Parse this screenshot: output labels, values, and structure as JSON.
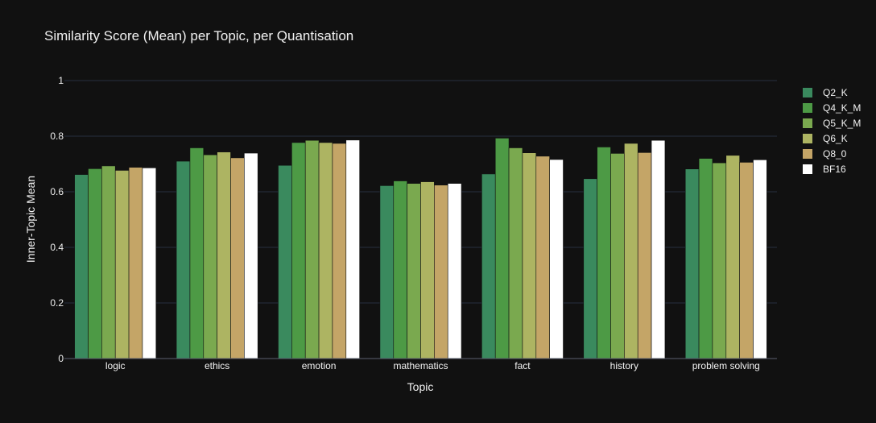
{
  "chart_data": {
    "type": "bar",
    "title": "Similarity Score (Mean) per Topic, per Quantisation",
    "xlabel": "Topic",
    "ylabel": "Inner-Topic Mean",
    "ylim": [
      0,
      1
    ],
    "yticks": [
      0,
      0.2,
      0.4,
      0.6,
      0.8,
      1
    ],
    "ytick_labels": [
      "0",
      "0.2",
      "0.4",
      "0.6",
      "0.8",
      "1"
    ],
    "grid": true,
    "legend_position": "top-right",
    "categories": [
      "logic",
      "ethics",
      "emotion",
      "mathematics",
      "fact",
      "history",
      "problem solving"
    ],
    "series": [
      {
        "name": "Q2_K",
        "color": "#3a8a5e",
        "values": [
          0.662,
          0.71,
          0.695,
          0.622,
          0.664,
          0.647,
          0.682
        ]
      },
      {
        "name": "Q4_K_M",
        "color": "#4d9a45",
        "values": [
          0.683,
          0.758,
          0.777,
          0.639,
          0.793,
          0.761,
          0.72
        ]
      },
      {
        "name": "Q5_K_M",
        "color": "#7aa94f",
        "values": [
          0.693,
          0.733,
          0.785,
          0.63,
          0.758,
          0.738,
          0.704
        ]
      },
      {
        "name": "Q6_K",
        "color": "#adb462",
        "values": [
          0.677,
          0.743,
          0.777,
          0.636,
          0.74,
          0.774,
          0.731
        ]
      },
      {
        "name": "Q8_0",
        "color": "#c4a567",
        "values": [
          0.688,
          0.722,
          0.774,
          0.624,
          0.728,
          0.741,
          0.706
        ]
      },
      {
        "name": "BF16",
        "color": "#ffffff",
        "values": [
          0.686,
          0.739,
          0.786,
          0.63,
          0.716,
          0.785,
          0.715
        ]
      }
    ]
  }
}
